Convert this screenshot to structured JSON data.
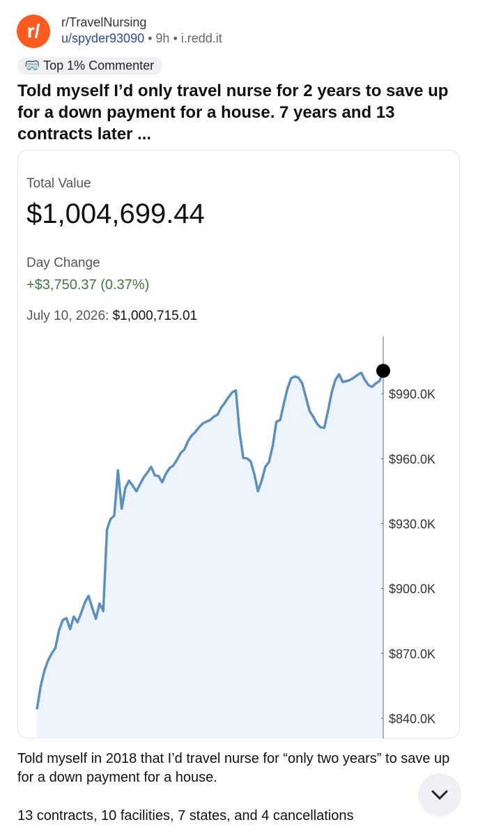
{
  "post": {
    "subreddit": "r/TravelNursing",
    "user": "u/spyder93090",
    "age": "9h",
    "domain": "i.redd.it",
    "badge": "Top 1% Commenter",
    "title": "Told myself I’d only travel nurse for 2 years to save up for a down payment for a house. 7 years and 13 contracts later ...",
    "body": [
      "Told myself in 2018 that I’d travel nurse for “only two years” to save up for a down payment for a house.",
      "13 contracts, 10 facilities, 7 states, and 4 cancellations"
    ]
  },
  "summary": {
    "label": "Total Value",
    "total": "$1,004,699.44",
    "change_label": "Day Change",
    "change": "+$3,750.37 (0.37%)",
    "date": "July 10, 2026:",
    "date_value": "$1,000,715.01"
  },
  "chart_data": {
    "type": "line",
    "color": "#5b8fc2",
    "values": [
      844200,
      854800,
      861900,
      866700,
      869900,
      872500,
      880600,
      885400,
      886300,
      881200,
      887000,
      884400,
      888600,
      893400,
      896600,
      891200,
      886000,
      893100,
      889600,
      927200,
      932100,
      933700,
      954600,
      936900,
      946500,
      949800,
      947500,
      944900,
      948200,
      951400,
      953600,
      956200,
      952300,
      952000,
      949100,
      953000,
      955600,
      956800,
      959400,
      962600,
      964200,
      968100,
      970700,
      972300,
      974500,
      976200,
      977100,
      977800,
      979400,
      980300,
      983600,
      985800,
      988400,
      990600,
      991600,
      972300,
      960400,
      960100,
      958800,
      953000,
      944900,
      949800,
      956200,
      958500,
      965900,
      977100,
      977800,
      985200,
      992300,
      997100,
      998000,
      997400,
      994800,
      988400,
      982000,
      979400,
      976200,
      974500,
      974200,
      982000,
      990600,
      996400,
      999000,
      995500,
      995800,
      996400,
      997400,
      998700,
      999700,
      996400,
      993900,
      993200,
      994800,
      995800,
      1000600
    ],
    "ylim": [
      830700,
      1015800
    ],
    "yticks": [
      {
        "value": 840000,
        "label": "$840.0K"
      },
      {
        "value": 870000,
        "label": "$870.0K"
      },
      {
        "value": 900000,
        "label": "$900.0K"
      },
      {
        "value": 930000,
        "label": "$930.0K"
      },
      {
        "value": 960000,
        "label": "$960.0K"
      },
      {
        "value": 990000,
        "label": "$990.0K"
      }
    ]
  }
}
